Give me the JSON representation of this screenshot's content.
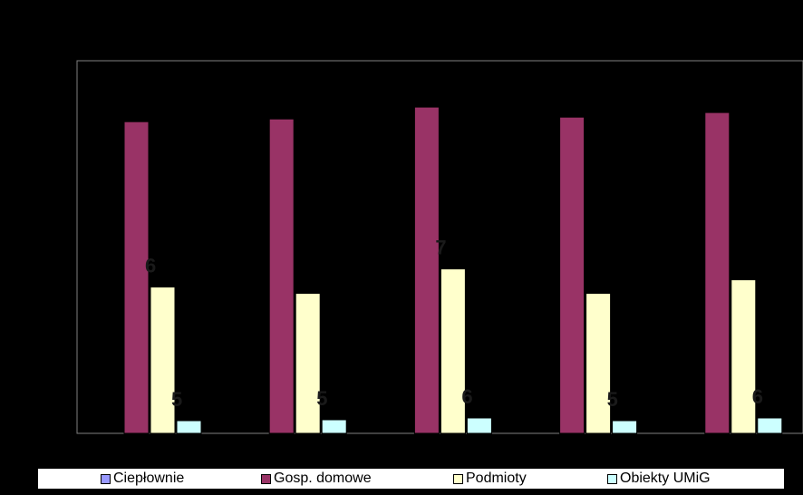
{
  "chart_data": {
    "type": "bar",
    "categories": [
      "",
      "",
      "",
      "",
      ""
    ],
    "series": [
      {
        "name": "Ciepłownie",
        "color": "#9999ff",
        "values": [
          0,
          0,
          0,
          0,
          0
        ]
      },
      {
        "name": "Gosp. domowe",
        "color": "#993366",
        "values": [
          343,
          346,
          359,
          348,
          353
        ]
      },
      {
        "name": "Podmioty",
        "color": "#ffffcc",
        "values": [
          161,
          154,
          181,
          154,
          169
        ]
      },
      {
        "name": "Obiekty UMiG",
        "color": "#ccffff",
        "values": [
          14,
          15,
          17,
          14,
          17
        ]
      }
    ],
    "visible_labels": [
      {
        "text": "6",
        "category": 0,
        "series": 2
      },
      {
        "text": "5",
        "category": 0,
        "series": 3
      },
      {
        "text": "5",
        "category": 1,
        "series": 3
      },
      {
        "text": "7",
        "category": 2,
        "series": 2
      },
      {
        "text": "6",
        "category": 2,
        "series": 3
      },
      {
        "text": "5",
        "category": 3,
        "series": 3
      },
      {
        "text": "6",
        "category": 4,
        "series": 3
      }
    ],
    "ylim": [
      0,
      410
    ],
    "title": "",
    "xlabel": "",
    "ylabel": "",
    "grid": false,
    "legend": "bottom"
  }
}
